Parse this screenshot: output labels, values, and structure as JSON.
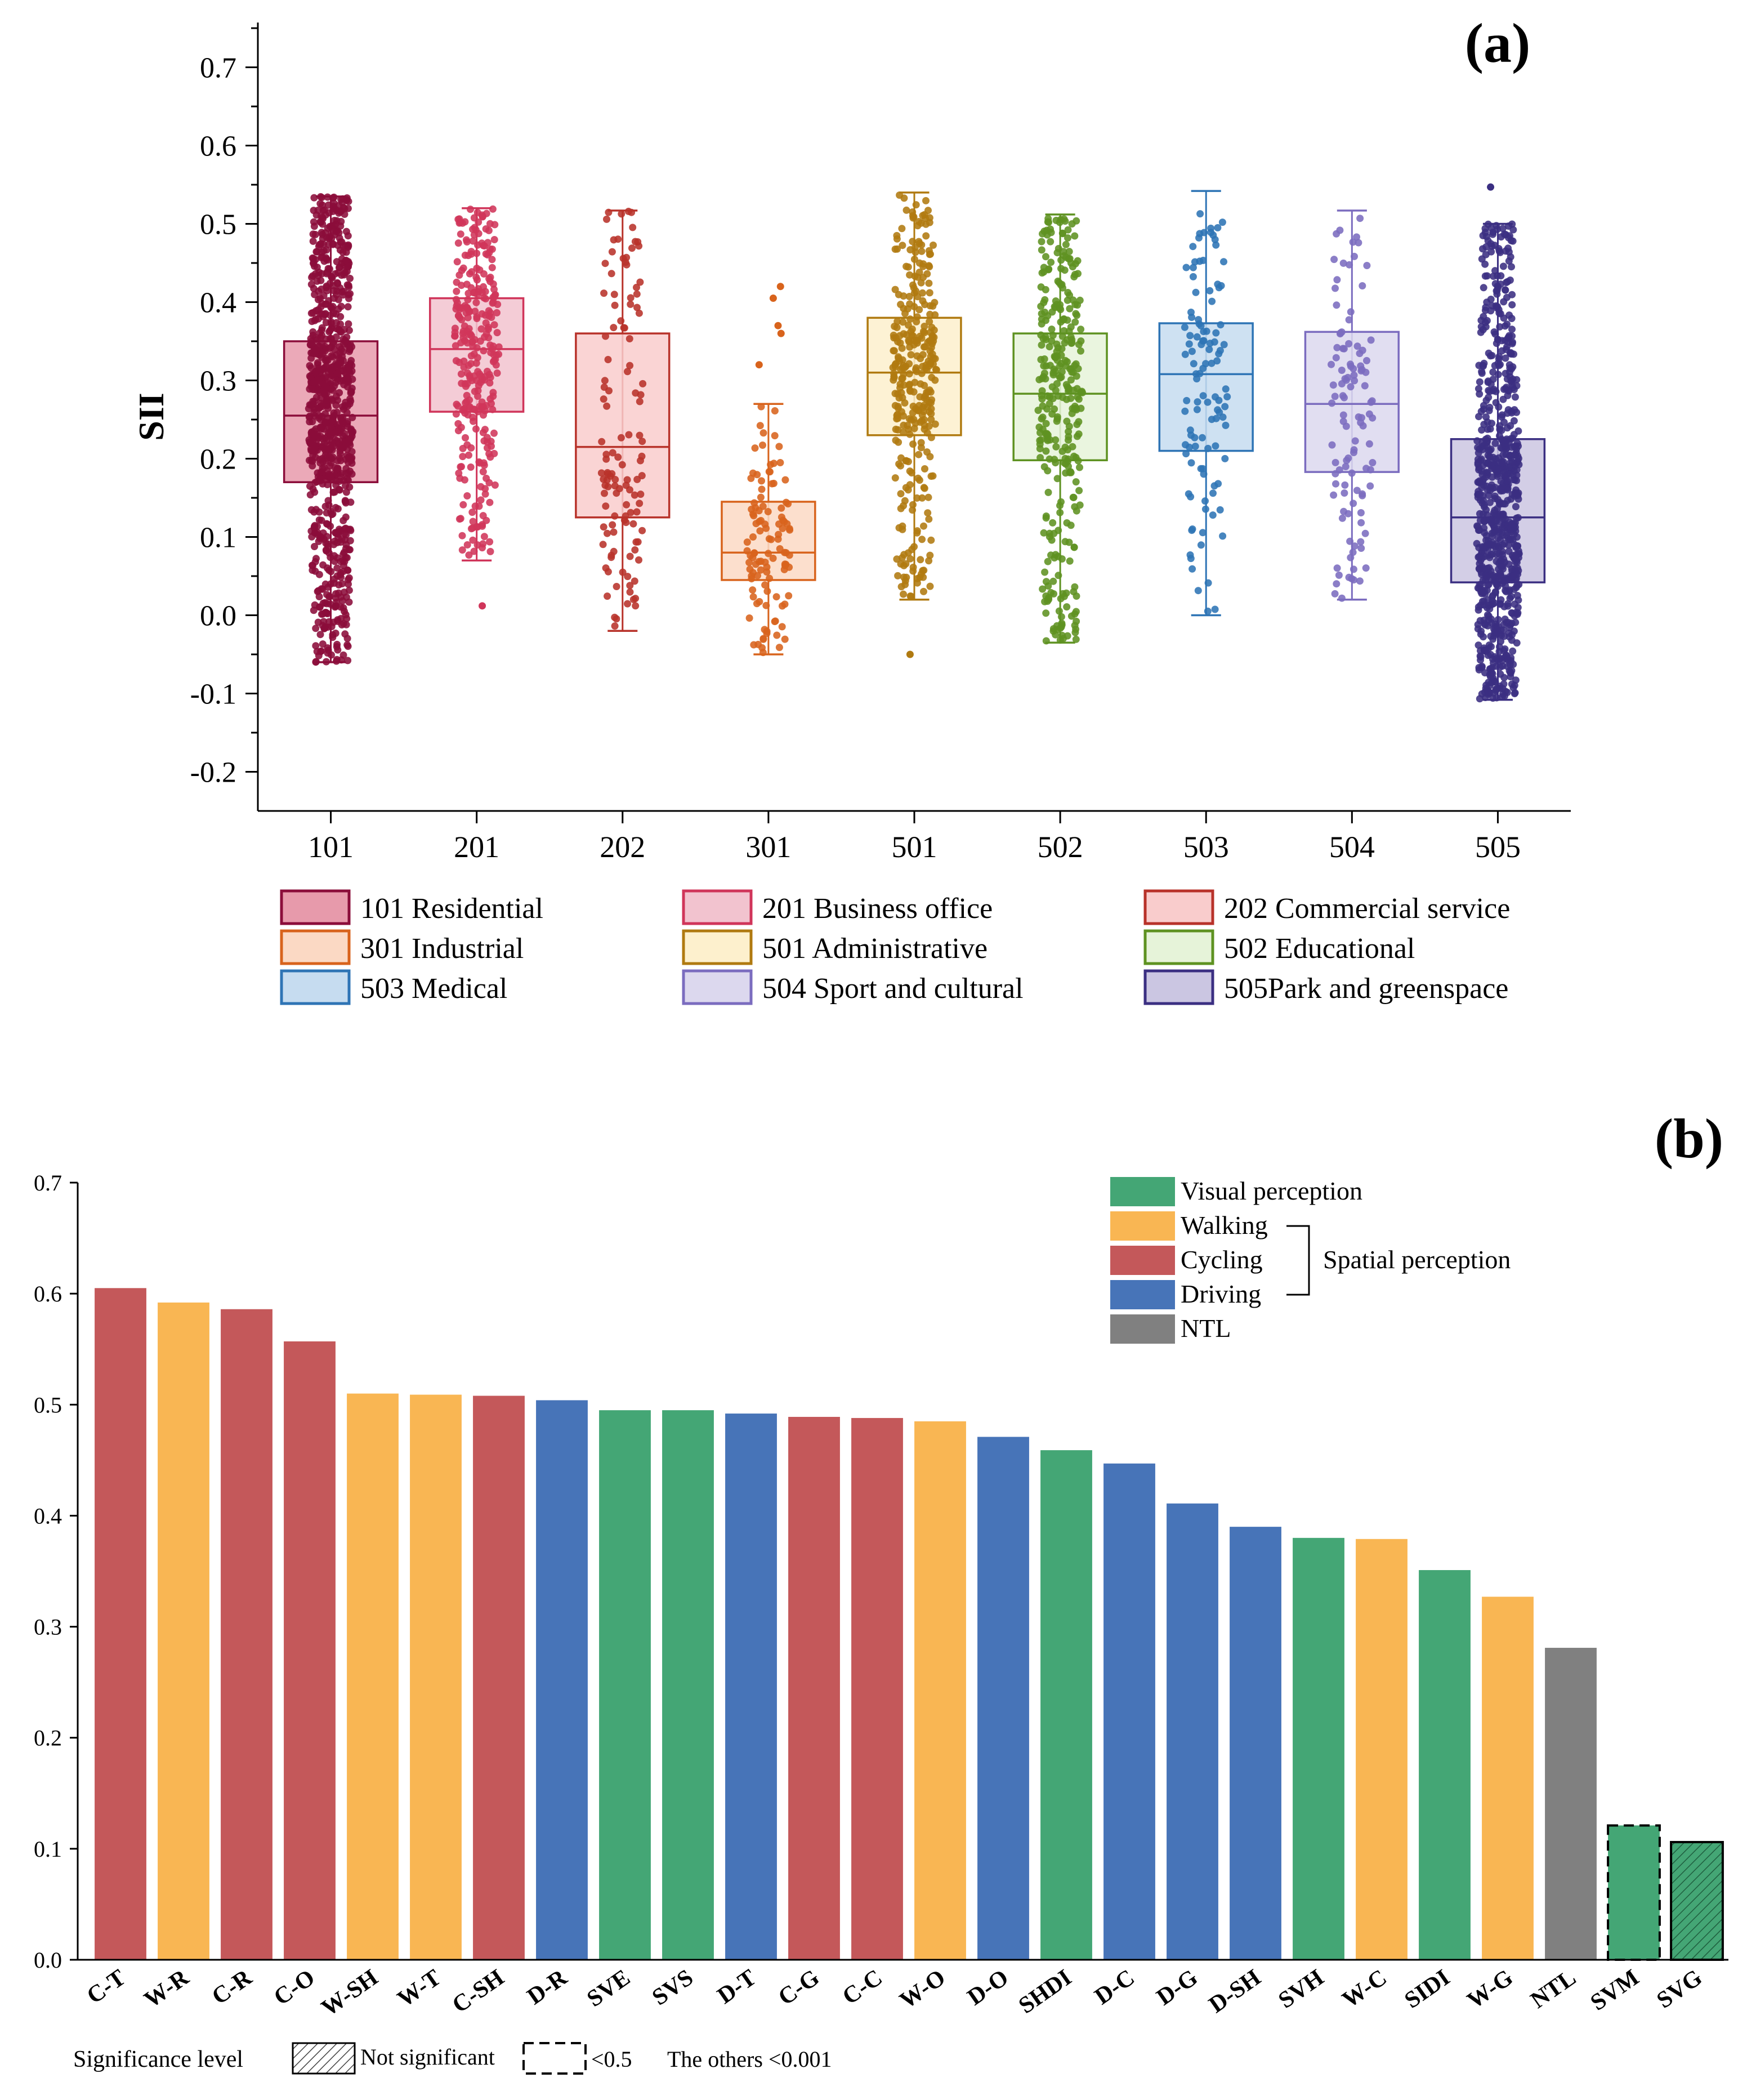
{
  "chart_data": [
    {
      "type": "box",
      "panel_label": "(a)",
      "ylabel": "SII",
      "ylim": [
        -0.25,
        0.75
      ],
      "yticks": [
        "-0.2",
        "-0.1",
        "0.0",
        "0.1",
        "0.2",
        "0.3",
        "0.4",
        "0.5",
        "0.6",
        "0.7"
      ],
      "categories": [
        "101",
        "201",
        "202",
        "301",
        "501",
        "502",
        "503",
        "504",
        "505"
      ],
      "boxes": [
        {
          "code": "101",
          "min": -0.06,
          "q1": 0.17,
          "median": 0.255,
          "q3": 0.35,
          "max": 0.535,
          "n": 900,
          "color": "#8b0d3a",
          "fill": "#e79aab",
          "seed": 11,
          "outliers": []
        },
        {
          "code": "201",
          "min": 0.07,
          "q1": 0.26,
          "median": 0.34,
          "q3": 0.405,
          "max": 0.52,
          "n": 300,
          "color": "#d0355a",
          "fill": "#f2c3cf",
          "seed": 23,
          "outliers": [
            0.012
          ]
        },
        {
          "code": "202",
          "min": -0.02,
          "q1": 0.125,
          "median": 0.215,
          "q3": 0.36,
          "max": 0.517,
          "n": 120,
          "color": "#b8322a",
          "fill": "#f9cccc",
          "seed": 37,
          "outliers": []
        },
        {
          "code": "301",
          "min": -0.05,
          "q1": 0.045,
          "median": 0.08,
          "q3": 0.145,
          "max": 0.27,
          "n": 110,
          "color": "#d8631c",
          "fill": "#fbd9c4",
          "seed": 41,
          "outliers": [
            0.42,
            0.405,
            0.37,
            0.36,
            0.32
          ]
        },
        {
          "code": "501",
          "min": 0.02,
          "q1": 0.23,
          "median": 0.31,
          "q3": 0.38,
          "max": 0.54,
          "n": 330,
          "color": "#b07a10",
          "fill": "#fdf0cd",
          "seed": 53,
          "outliers": [
            -0.05
          ]
        },
        {
          "code": "502",
          "min": -0.035,
          "q1": 0.198,
          "median": 0.283,
          "q3": 0.36,
          "max": 0.512,
          "n": 330,
          "color": "#5e9221",
          "fill": "#e6f3d9",
          "seed": 67,
          "outliers": []
        },
        {
          "code": "503",
          "min": 0.0,
          "q1": 0.21,
          "median": 0.308,
          "q3": 0.373,
          "max": 0.542,
          "n": 110,
          "color": "#2e74b5",
          "fill": "#c6dcf0",
          "seed": 71,
          "outliers": []
        },
        {
          "code": "504",
          "min": 0.02,
          "q1": 0.183,
          "median": 0.27,
          "q3": 0.362,
          "max": 0.517,
          "n": 110,
          "color": "#7b6cbf",
          "fill": "#dcd8ee",
          "seed": 83,
          "outliers": []
        },
        {
          "code": "505",
          "min": -0.108,
          "q1": 0.042,
          "median": 0.125,
          "q3": 0.225,
          "max": 0.5,
          "n": 800,
          "color": "#3b2f82",
          "fill": "#cbc6e2",
          "seed": 97,
          "outliers": [
            0.547
          ]
        }
      ],
      "legend": [
        {
          "label": "101 Residential",
          "color": "#8b0d3a",
          "fill": "#e79aab"
        },
        {
          "label": "201 Business office",
          "color": "#d0355a",
          "fill": "#f2c3cf"
        },
        {
          "label": "202 Commercial service",
          "color": "#b8322a",
          "fill": "#f9cccc"
        },
        {
          "label": "301 Industrial",
          "color": "#d8631c",
          "fill": "#fbd9c4"
        },
        {
          "label": "501 Administrative",
          "color": "#b07a10",
          "fill": "#fdf0cd"
        },
        {
          "label": "502 Educational",
          "color": "#5e9221",
          "fill": "#e6f3d9"
        },
        {
          "label": "503 Medical",
          "color": "#2e74b5",
          "fill": "#c6dcf0"
        },
        {
          "label": "504 Sport and cultural",
          "color": "#7b6cbf",
          "fill": "#dcd8ee"
        },
        {
          "label": "505Park and greenspace",
          "color": "#3b2f82",
          "fill": "#cbc6e2"
        }
      ]
    },
    {
      "type": "bar",
      "panel_label": "(b)",
      "ylim": [
        0,
        0.7
      ],
      "yticks": [
        "0.0",
        "0.1",
        "0.2",
        "0.3",
        "0.4",
        "0.5",
        "0.6",
        "0.7"
      ],
      "categories": [
        "C-T",
        "W-R",
        "C-R",
        "C-O",
        "W-SH",
        "W-T",
        "C-SH",
        "D-R",
        "SVE",
        "SVS",
        "D-T",
        "C-G",
        "C-C",
        "W-O",
        "D-O",
        "SHDI",
        "D-C",
        "D-G",
        "D-SH",
        "SVH",
        "W-C",
        "SIDI",
        "W-G",
        "NTL",
        "SVM",
        "SVG"
      ],
      "values": [
        0.605,
        0.592,
        0.586,
        0.557,
        0.51,
        0.509,
        0.508,
        0.504,
        0.495,
        0.495,
        0.492,
        0.489,
        0.488,
        0.485,
        0.471,
        0.459,
        0.447,
        0.411,
        0.39,
        0.38,
        0.379,
        0.351,
        0.327,
        0.281,
        0.121,
        0.106
      ],
      "groups": [
        "Cycling",
        "Walking",
        "Cycling",
        "Cycling",
        "Walking",
        "Walking",
        "Cycling",
        "Driving",
        "Visual perception",
        "Visual perception",
        "Driving",
        "Cycling",
        "Cycling",
        "Walking",
        "Driving",
        "Visual perception",
        "Driving",
        "Driving",
        "Driving",
        "Visual perception",
        "Walking",
        "Visual perception",
        "Walking",
        "NTL",
        "Visual perception",
        "Visual perception"
      ],
      "significance": [
        "ok",
        "ok",
        "ok",
        "ok",
        "ok",
        "ok",
        "ok",
        "ok",
        "ok",
        "ok",
        "ok",
        "ok",
        "ok",
        "ok",
        "ok",
        "ok",
        "ok",
        "ok",
        "ok",
        "ok",
        "ok",
        "ok",
        "ok",
        "ok",
        "lt05",
        "ns"
      ],
      "group_colors": {
        "Visual perception": "#44a675",
        "Walking": "#f9b653",
        "Cycling": "#c4585a",
        "Driving": "#4774b8",
        "NTL": "#808080"
      },
      "legend": [
        {
          "label": "Visual perception",
          "color": "#44a675"
        },
        {
          "label": "Walking",
          "color": "#f9b653"
        },
        {
          "label": "Cycling",
          "color": "#c4585a"
        },
        {
          "label": "Driving",
          "color": "#4774b8"
        },
        {
          "label": "NTL",
          "color": "#808080"
        }
      ],
      "bracket_label": "Spatial perception",
      "significance_legend": {
        "title": "Significance level",
        "not_significant": "Not significant",
        "lt05": "<0.5",
        "others": "The others <0.001"
      }
    }
  ]
}
